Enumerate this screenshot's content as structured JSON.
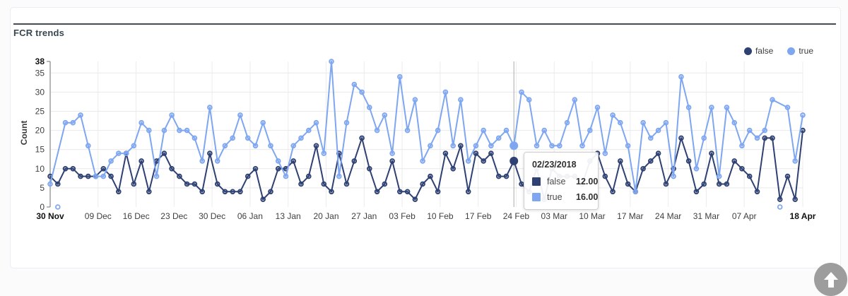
{
  "card": {
    "title": "FCR trends"
  },
  "legend": [
    {
      "label": "false",
      "color": "#2e4172"
    },
    {
      "label": "true",
      "color": "#7ea6f1"
    }
  ],
  "chart_data": {
    "type": "line",
    "title": "FCR trends",
    "xlabel": "",
    "ylabel": "Count",
    "ylim": [
      0,
      38
    ],
    "y_ticks": [
      38,
      35,
      30,
      25,
      20,
      15,
      10,
      5,
      0
    ],
    "grid": true,
    "legend_position": "top-right",
    "x_ticks": [
      {
        "label": "30 Nov",
        "i": 0,
        "bold": true
      },
      {
        "label": "09 Dec",
        "i": 6.3,
        "bold": false
      },
      {
        "label": "16 Dec",
        "i": 11.3,
        "bold": false
      },
      {
        "label": "23 Dec",
        "i": 16.3,
        "bold": false
      },
      {
        "label": "30 Dec",
        "i": 21.3,
        "bold": false
      },
      {
        "label": "06 Jan",
        "i": 26.3,
        "bold": false
      },
      {
        "label": "13 Jan",
        "i": 31.3,
        "bold": false
      },
      {
        "label": "20 Jan",
        "i": 36.3,
        "bold": false
      },
      {
        "label": "27 Jan",
        "i": 41.3,
        "bold": false
      },
      {
        "label": "03 Feb",
        "i": 46.3,
        "bold": false
      },
      {
        "label": "10 Feb",
        "i": 51.3,
        "bold": false
      },
      {
        "label": "17 Feb",
        "i": 56.3,
        "bold": false
      },
      {
        "label": "24 Feb",
        "i": 61.3,
        "bold": false
      },
      {
        "label": "03 Mar",
        "i": 66.3,
        "bold": false
      },
      {
        "label": "10 Mar",
        "i": 71.3,
        "bold": false
      },
      {
        "label": "17 Mar",
        "i": 76.3,
        "bold": false
      },
      {
        "label": "24 Mar",
        "i": 81.3,
        "bold": false
      },
      {
        "label": "31 Mar",
        "i": 86.3,
        "bold": false
      },
      {
        "label": "07 Apr",
        "i": 91.3,
        "bold": false
      },
      {
        "label": "18 Apr",
        "i": 99,
        "bold": true
      }
    ],
    "series": [
      {
        "name": "false",
        "color": "#2e4172",
        "values": [
          8,
          6,
          10,
          10,
          8,
          8,
          8,
          10,
          8,
          4,
          14,
          6,
          12,
          4,
          12,
          14,
          10,
          8,
          6,
          6,
          4,
          14,
          6,
          4,
          4,
          4,
          8,
          10,
          2,
          4,
          10,
          10,
          12,
          6,
          8,
          16,
          6,
          4,
          14,
          6,
          12,
          18,
          10,
          4,
          6,
          12,
          4,
          4,
          2,
          6,
          8,
          4,
          14,
          10,
          16,
          4,
          14,
          12,
          14,
          8,
          8,
          12,
          6,
          4,
          10,
          2,
          10,
          8,
          8,
          8,
          6,
          12,
          14,
          8,
          4,
          12,
          6,
          4,
          10,
          12,
          14,
          6,
          10,
          18,
          12,
          4,
          6,
          14,
          6,
          6,
          12,
          10,
          8,
          4,
          18,
          18,
          2,
          8,
          2,
          20
        ]
      },
      {
        "name": "true",
        "color": "#7ea6f1",
        "values": [
          6,
          null,
          22,
          22,
          24,
          16,
          8,
          8,
          12,
          14,
          14,
          16,
          22,
          20,
          8,
          20,
          24,
          20,
          20,
          18,
          12,
          26,
          12,
          16,
          18,
          24,
          18,
          16,
          22,
          16,
          12,
          8,
          16,
          18,
          20,
          22,
          14,
          38,
          8,
          22,
          32,
          30,
          26,
          20,
          24,
          14,
          34,
          20,
          28,
          12,
          16,
          20,
          30,
          16,
          28,
          12,
          16,
          20,
          16,
          18,
          20,
          16,
          30,
          28,
          16,
          20,
          16,
          16,
          22,
          28,
          16,
          20,
          26,
          14,
          24,
          22,
          16,
          4,
          22,
          18,
          20,
          22,
          8,
          34,
          26,
          10,
          18,
          26,
          8,
          26,
          22,
          16,
          20,
          18,
          20,
          28,
          null,
          26,
          12,
          24
        ]
      }
    ],
    "null_points_shown_at_zero": {
      "series": "true",
      "indices": [
        1,
        96
      ]
    }
  },
  "tooltip": {
    "date": "02/23/2018",
    "point_index": 61,
    "rows": [
      {
        "label": "false",
        "value": "12.00",
        "color": "#2e4172",
        "numeric": 12
      },
      {
        "label": "true",
        "value": "16.00",
        "color": "#7ea6f1",
        "numeric": 16
      }
    ]
  },
  "scroll_top_button": {
    "icon": "up-arrow"
  }
}
